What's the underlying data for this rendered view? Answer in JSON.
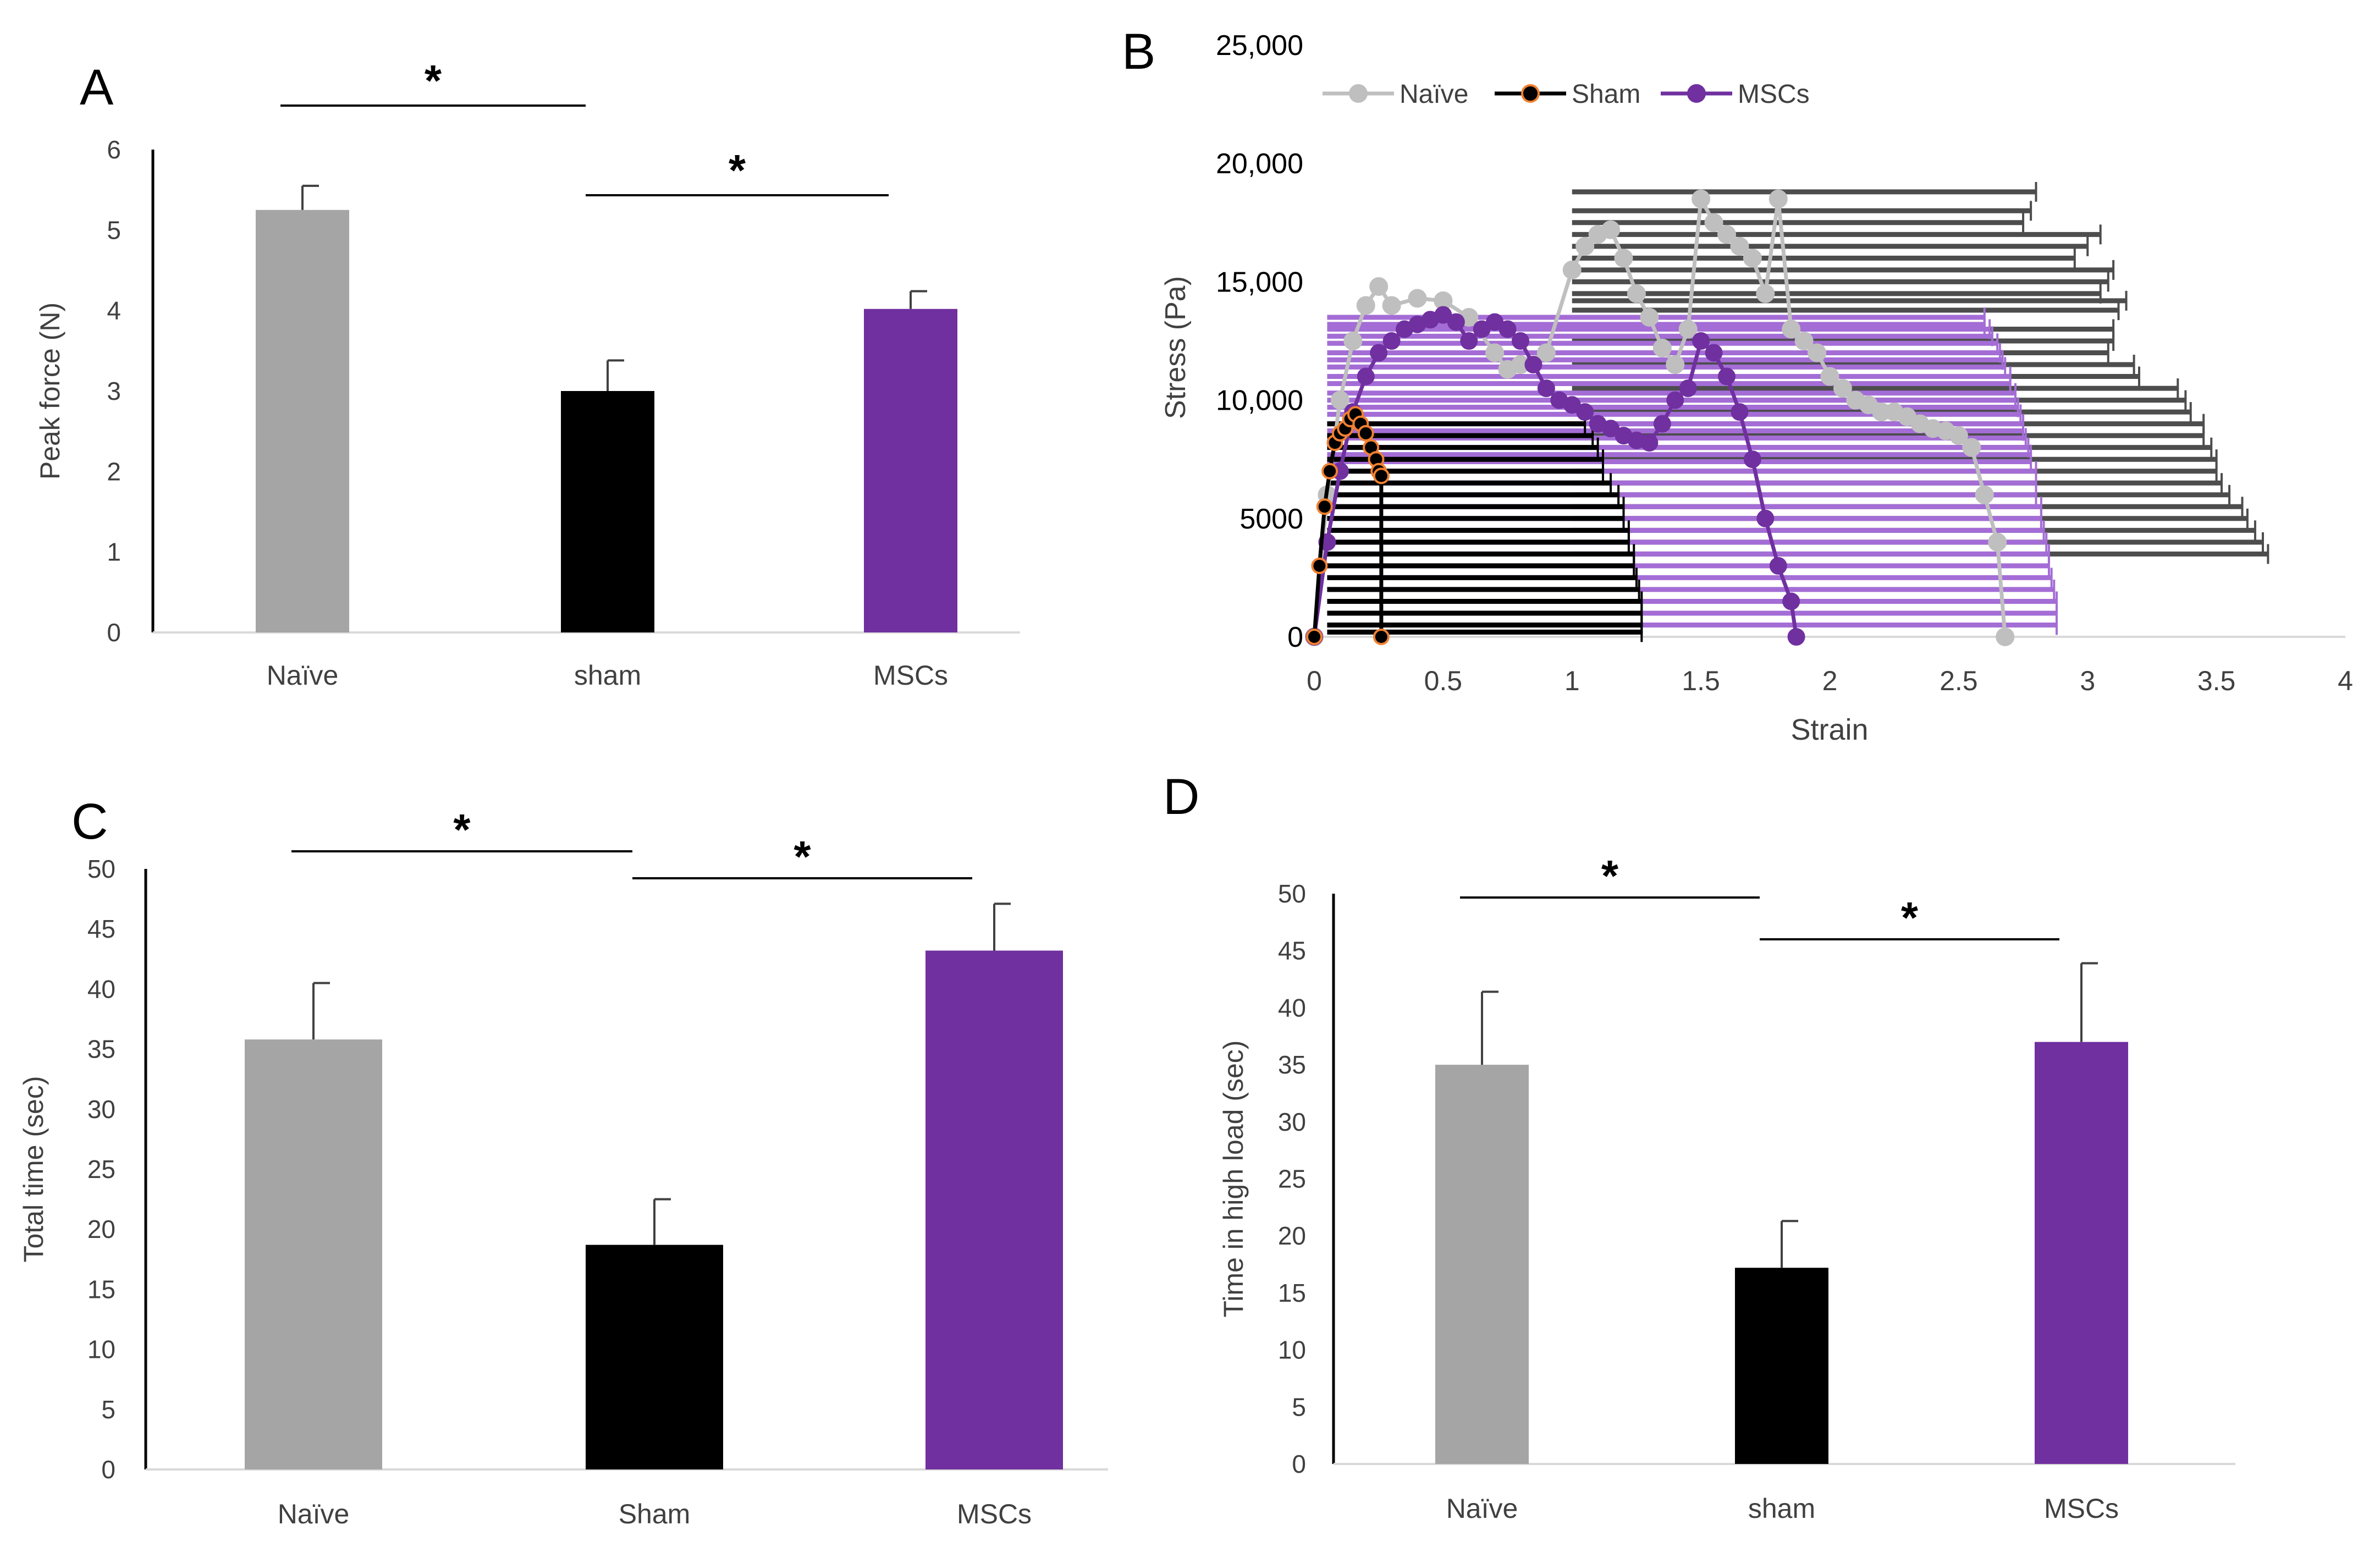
{
  "colors": {
    "naive": "#a5a5a5",
    "sham": "#000000",
    "mscs": "#7030a0",
    "naive_fill": "#4d4d4d",
    "mscs_fill": "#a46dd6",
    "naive_line": "#bfbfbf",
    "sham_marker": "#f08030",
    "axis": "#000000",
    "text": "#404040"
  },
  "chart_data": [
    {
      "panel": "A",
      "type": "bar",
      "categories": [
        "Naïve",
        "sham",
        "MSCs"
      ],
      "values": [
        5.25,
        3.0,
        4.02
      ],
      "errors": [
        0.3,
        0.38,
        0.22
      ],
      "ylabel": "Peak force (N)",
      "yticks": [
        "0",
        "1",
        "2",
        "3",
        "4",
        "5",
        "6"
      ],
      "ylim": [
        0,
        6
      ],
      "significance": [
        {
          "from": "Naïve",
          "to": "sham",
          "label": "*"
        },
        {
          "from": "sham",
          "to": "MSCs",
          "label": "*"
        }
      ]
    },
    {
      "panel": "B",
      "type": "line",
      "xlabel": "Strain",
      "ylabel": "Stress (Pa)",
      "xticks": [
        "0",
        "0.5",
        "1",
        "1.5",
        "2",
        "2.5",
        "3",
        "3.5",
        "4"
      ],
      "yticks": [
        "0",
        "5000",
        "10,000",
        "15,000",
        "20,000",
        "25,000"
      ],
      "xlim": [
        0,
        4
      ],
      "ylim": [
        0,
        25000
      ],
      "series": [
        {
          "name": "Naïve",
          "x": [
            0,
            0.05,
            0.1,
            0.15,
            0.2,
            0.25,
            0.3,
            0.4,
            0.5,
            0.6,
            0.7,
            0.75,
            0.8,
            0.9,
            1.0,
            1.05,
            1.1,
            1.15,
            1.2,
            1.25,
            1.3,
            1.35,
            1.4,
            1.45,
            1.5,
            1.55,
            1.6,
            1.65,
            1.7,
            1.75,
            1.8,
            1.85,
            1.9,
            1.95,
            2.0,
            2.05,
            2.1,
            2.15,
            2.2,
            2.25,
            2.3,
            2.35,
            2.4,
            2.45,
            2.5,
            2.55,
            2.6,
            2.65,
            2.68
          ],
          "y": [
            0,
            6000,
            10000,
            12500,
            14000,
            14800,
            14000,
            14300,
            14200,
            13500,
            12000,
            11300,
            11500,
            12000,
            15500,
            16500,
            17000,
            17200,
            16000,
            14500,
            13500,
            12200,
            11500,
            13000,
            18500,
            17500,
            17000,
            16500,
            16000,
            14500,
            18500,
            13000,
            12500,
            12000,
            11000,
            10500,
            10000,
            9800,
            9500,
            9500,
            9300,
            9000,
            8800,
            8700,
            8500,
            8000,
            6000,
            4000,
            0
          ],
          "error_cap_y": [
            18800,
            18000,
            17500,
            17000,
            16500,
            16000,
            15500,
            15000,
            14500,
            14200,
            13800,
            13000,
            12500,
            12000,
            11500,
            11000,
            10500,
            10000,
            9500,
            9000,
            8500,
            8000,
            7500,
            7000,
            6500,
            6000,
            5500,
            5000,
            4500,
            4000,
            3500
          ],
          "error_cap_x": [
            2.8,
            2.78,
            2.75,
            3.05,
            3.0,
            2.95,
            3.1,
            3.08,
            3.05,
            3.15,
            3.12,
            3.1,
            3.1,
            3.08,
            3.18,
            3.2,
            3.35,
            3.38,
            3.4,
            3.45,
            3.45,
            3.48,
            3.5,
            3.5,
            3.52,
            3.55,
            3.6,
            3.62,
            3.65,
            3.68,
            3.7
          ]
        },
        {
          "name": "Sham",
          "x": [
            0,
            0.02,
            0.04,
            0.06,
            0.08,
            0.1,
            0.12,
            0.14,
            0.16,
            0.18,
            0.2,
            0.22,
            0.24,
            0.25,
            0.26,
            0.26
          ],
          "y": [
            0,
            3000,
            5500,
            7000,
            8200,
            8600,
            8800,
            9200,
            9400,
            9000,
            8600,
            8000,
            7500,
            7000,
            6800,
            0
          ],
          "error_cap_y": [
            9000,
            8500,
            8000,
            7500,
            7000,
            6500,
            6000,
            5500,
            5000,
            4500,
            4000,
            3500,
            3000,
            2500,
            2000,
            1500,
            1000,
            500,
            200
          ],
          "error_cap_x": [
            1.05,
            1.08,
            1.1,
            1.12,
            1.12,
            1.15,
            1.18,
            1.2,
            1.2,
            1.22,
            1.22,
            1.24,
            1.24,
            1.25,
            1.26,
            1.27,
            1.27,
            1.27,
            1.27
          ]
        },
        {
          "name": "MSCs",
          "x": [
            0,
            0.05,
            0.1,
            0.15,
            0.2,
            0.25,
            0.3,
            0.35,
            0.4,
            0.45,
            0.5,
            0.55,
            0.6,
            0.65,
            0.7,
            0.75,
            0.8,
            0.85,
            0.9,
            0.95,
            1.0,
            1.05,
            1.1,
            1.15,
            1.2,
            1.25,
            1.3,
            1.35,
            1.4,
            1.45,
            1.5,
            1.55,
            1.6,
            1.65,
            1.7,
            1.75,
            1.8,
            1.85,
            1.87
          ],
          "y": [
            0,
            4000,
            7000,
            9500,
            11000,
            12000,
            12500,
            13000,
            13200,
            13400,
            13600,
            13300,
            12500,
            13000,
            13300,
            13000,
            12500,
            11500,
            10500,
            10000,
            9800,
            9500,
            9000,
            8800,
            8500,
            8300,
            8200,
            9000,
            10000,
            10500,
            12500,
            12000,
            11000,
            9500,
            7500,
            5000,
            3000,
            1500,
            0
          ],
          "error_cap_y": [
            13500,
            13200,
            13000,
            12700,
            12400,
            12000,
            11700,
            11400,
            11000,
            10700,
            10300,
            10000,
            9700,
            9400,
            9000,
            8700,
            8400,
            8000,
            7700,
            7400,
            7000,
            6500,
            6000,
            5500,
            5000,
            4500,
            4000,
            3500,
            3000,
            2500,
            2000,
            1500,
            1000,
            500
          ],
          "error_cap_x": [
            2.6,
            2.6,
            2.62,
            2.63,
            2.65,
            2.66,
            2.67,
            2.68,
            2.7,
            2.7,
            2.72,
            2.72,
            2.73,
            2.74,
            2.75,
            2.75,
            2.76,
            2.77,
            2.78,
            2.78,
            2.8,
            2.8,
            2.8,
            2.82,
            2.82,
            2.83,
            2.84,
            2.85,
            2.85,
            2.86,
            2.87,
            2.88,
            2.88,
            2.88
          ]
        }
      ]
    },
    {
      "panel": "C",
      "type": "bar",
      "categories": [
        "Naïve",
        "Sham",
        "MSCs"
      ],
      "values": [
        35.8,
        18.7,
        43.2
      ],
      "errors": [
        4.7,
        3.8,
        3.9
      ],
      "ylabel": "Total time (sec)",
      "yticks": [
        "0",
        "5",
        "10",
        "15",
        "20",
        "25",
        "30",
        "35",
        "40",
        "45",
        "50"
      ],
      "ylim": [
        0,
        50
      ],
      "significance": [
        {
          "from": "Naïve",
          "to": "Sham",
          "label": "*"
        },
        {
          "from": "Sham",
          "to": "MSCs",
          "label": "*"
        }
      ]
    },
    {
      "panel": "D",
      "type": "bar",
      "categories": [
        "Naïve",
        "sham",
        "MSCs"
      ],
      "values": [
        35.0,
        17.2,
        37.0
      ],
      "errors": [
        6.4,
        4.1,
        6.9
      ],
      "ylabel": "Time in high load (sec)",
      "yticks": [
        "0",
        "5",
        "10",
        "15",
        "20",
        "25",
        "30",
        "35",
        "40",
        "45",
        "50"
      ],
      "ylim": [
        0,
        50
      ],
      "significance": [
        {
          "from": "Naïve",
          "to": "sham",
          "label": "*"
        },
        {
          "from": "sham",
          "to": "MSCs",
          "label": "*"
        }
      ]
    }
  ]
}
